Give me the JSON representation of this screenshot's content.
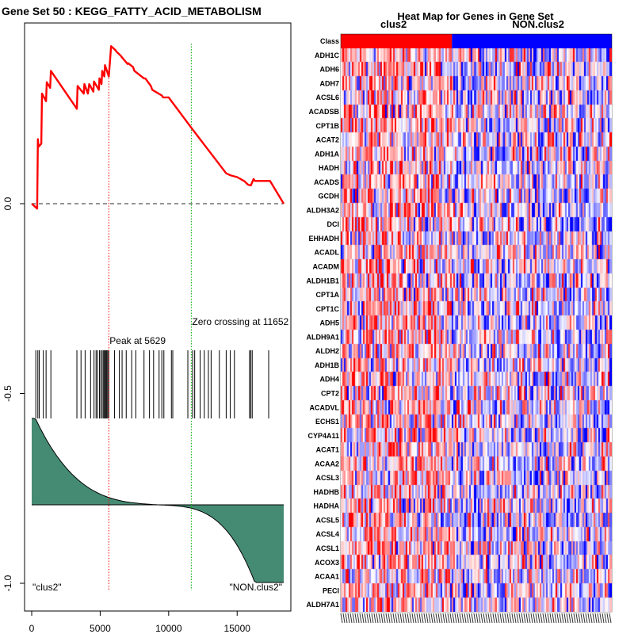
{
  "chart_data": [
    {
      "type": "line",
      "title": "Gene Set  50 : KEGG_FATTY_ACID_METABOLISM",
      "xlim": [
        0,
        18500
      ],
      "ylim": [
        -1.04,
        0.44
      ],
      "x_ticks": [
        0,
        5000,
        10000,
        15000
      ],
      "x_tick_labels": [
        "0",
        "5000",
        "10000",
        "15000"
      ],
      "y_ticks": [
        0.0,
        -0.5,
        -1.0
      ],
      "y_tick_labels": [
        "0.0",
        "-0.5",
        "-1.0"
      ],
      "peak": {
        "x": 5629,
        "label": "Peak at 5629"
      },
      "zero_crossing": {
        "x": 11652,
        "label": "Zero crossing at 11652"
      },
      "left_label": "\"clus2\"",
      "right_label": "\"NON.clus2\"",
      "running_es": {
        "x": [
          0,
          400,
          450,
          500,
          700,
          750,
          1050,
          1100,
          1350,
          1400,
          3300,
          3350,
          3800,
          3850,
          4100,
          4200,
          4500,
          4550,
          4900,
          4950,
          5100,
          5150,
          5300,
          5350,
          5629,
          5800,
          6100,
          6200,
          6500,
          6600,
          7000,
          7050,
          7400,
          7500,
          8200,
          8300,
          8700,
          8800,
          9500,
          9600,
          10000,
          11652,
          14200,
          14500,
          15000,
          15500,
          15800,
          16000,
          16200,
          16300,
          17300,
          17400,
          18400
        ],
        "y": [
          0.0,
          -0.013,
          0.17,
          0.15,
          0.158,
          0.29,
          0.27,
          0.32,
          0.305,
          0.35,
          0.25,
          0.31,
          0.29,
          0.315,
          0.29,
          0.315,
          0.295,
          0.322,
          0.3,
          0.33,
          0.315,
          0.35,
          0.335,
          0.365,
          0.335,
          0.415,
          0.405,
          0.4,
          0.39,
          0.385,
          0.368,
          0.37,
          0.36,
          0.35,
          0.33,
          0.33,
          0.31,
          0.3,
          0.285,
          0.28,
          0.28,
          0.2,
          0.08,
          0.075,
          0.07,
          0.06,
          0.05,
          0.048,
          0.065,
          0.06,
          0.06,
          0.06,
          0.0
        ]
      },
      "hit_positions": [
        300,
        450,
        550,
        850,
        1050,
        1400,
        3300,
        3600,
        3900,
        4300,
        4550,
        4700,
        4800,
        4950,
        5050,
        5150,
        5250,
        5300,
        5380,
        5420,
        5480,
        5550,
        5629,
        6050,
        6400,
        6600,
        6900,
        7300,
        7600,
        8200,
        8600,
        8900,
        9300,
        9500,
        9650,
        10200,
        10300,
        11400,
        11750,
        11900,
        12300,
        12600,
        12900,
        13100,
        13700,
        14200,
        14500,
        14800,
        15900,
        16000,
        16100,
        17300
      ],
      "ranked_metric": {
        "start": 0.16,
        "end": -0.33,
        "ylim": [
          -0.34,
          0.2
        ]
      }
    },
    {
      "type": "heatmap",
      "title": "Heat Map for Genes in Gene Set",
      "class_row_label": "Class",
      "class_labels": [
        "clus2",
        "NON.clus2"
      ],
      "class_colors": [
        "#ff0000",
        "#0000ff"
      ],
      "class_split_fraction": 0.41,
      "genes": [
        "ADH1C",
        "ADH6",
        "ADH7",
        "ACSL6",
        "ACADSB",
        "CPT1B",
        "ACAT2",
        "ADH1A",
        "HADH",
        "ACADS",
        "GCDH",
        "ALDH3A2",
        "DCI",
        "EHHADH",
        "ACADL",
        "ACADM",
        "ALDH1B1",
        "CPT1A",
        "CPT1C",
        "ADH5",
        "ALDH9A1",
        "ALDH2",
        "ADH1B",
        "ADH4",
        "CPT2",
        "ACADVL",
        "ECHS1",
        "CYP4A11",
        "ACAT1",
        "ACAA2",
        "ACSL3",
        "HADHB",
        "HADHA",
        "ACSL5",
        "ACSL4",
        "ACSL1",
        "ACOX3",
        "ACAA1",
        "PECI",
        "ALDH7A1"
      ],
      "n_samples": 170
    }
  ],
  "colors": {
    "es_line": "#ff0000",
    "metric_fill": "#458b74",
    "peak_line": "#ff0000",
    "zero_line": "#00aa00",
    "hot": "#ff0000",
    "cold": "#0000ff"
  }
}
